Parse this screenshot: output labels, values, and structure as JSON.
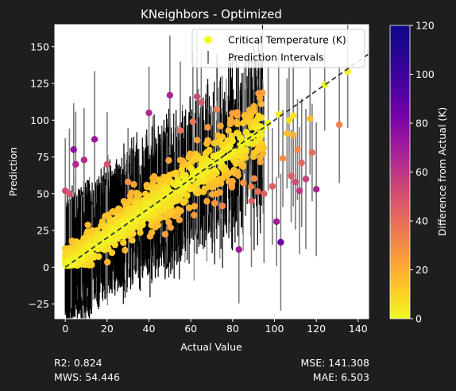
{
  "chart_data": {
    "type": "scatter",
    "title": "KNeighbors - Optimized",
    "xlabel": "Actual Value",
    "ylabel": "Prediction",
    "xlim": [
      -5,
      145
    ],
    "ylim": [
      -35,
      165
    ],
    "xticks": [
      0,
      20,
      40,
      60,
      80,
      100,
      120,
      140
    ],
    "yticks": [
      -25,
      0,
      25,
      50,
      75,
      100,
      125,
      150
    ],
    "grid": false,
    "legend": {
      "placement": "top-right",
      "entries": [
        "Critical Temperature (K)",
        "Prediction Intervals"
      ]
    },
    "colorbar": {
      "label": "Difference from Actual (K)",
      "range": [
        0,
        120
      ],
      "ticks": [
        0,
        20,
        40,
        60,
        80,
        100,
        120
      ],
      "colormap": "plasma_r"
    },
    "reference_line": {
      "type": "identity",
      "style": "dashed",
      "color": "#333333"
    },
    "interval_color": "#7a7a7a",
    "interval_dense_color": "#000000",
    "outlier_points": [
      [
        4,
        80
      ],
      [
        5,
        70
      ],
      [
        9,
        73
      ],
      [
        14,
        87
      ],
      [
        20,
        70
      ],
      [
        50,
        117
      ],
      [
        63,
        116
      ],
      [
        65,
        112
      ],
      [
        83,
        12
      ],
      [
        101,
        31
      ],
      [
        103,
        17
      ],
      [
        108,
        62
      ],
      [
        110,
        58
      ],
      [
        112,
        52
      ],
      [
        115,
        60
      ],
      [
        120,
        53
      ],
      [
        131,
        97
      ],
      [
        113,
        71
      ],
      [
        117,
        101
      ],
      [
        124,
        124
      ],
      [
        135,
        133
      ],
      [
        102,
        104
      ],
      [
        107,
        100
      ],
      [
        109,
        103
      ],
      [
        111,
        80
      ],
      [
        106,
        91
      ],
      [
        109,
        90
      ],
      [
        118,
        78
      ],
      [
        99,
        55
      ],
      [
        93,
        115
      ],
      [
        88,
        102
      ],
      [
        85,
        98
      ],
      [
        0,
        52
      ],
      [
        2,
        50
      ],
      [
        30,
        58
      ],
      [
        40,
        105
      ],
      [
        55,
        93
      ],
      [
        61,
        99
      ],
      [
        75,
        83
      ],
      [
        92,
        80
      ],
      [
        97,
        98
      ],
      [
        104,
        74
      ],
      [
        95,
        50
      ],
      [
        89,
        45
      ],
      [
        71,
        63
      ]
    ]
  },
  "metrics": {
    "r2": "R2: 0.824",
    "mws": "MWS: 54.446",
    "mse": "MSE: 141.308",
    "mae": "MAE: 6.503"
  }
}
